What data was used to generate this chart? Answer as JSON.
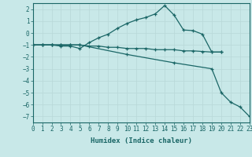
{
  "title": "",
  "xlabel": "Humidex (Indice chaleur)",
  "bg_color": "#c8e8e8",
  "grid_color_major": "#b0d0d0",
  "grid_color_minor": "#d0e8e8",
  "line_color": "#1a6666",
  "xlim": [
    0,
    23
  ],
  "ylim": [
    -7.5,
    2.5
  ],
  "xticks": [
    0,
    1,
    2,
    3,
    4,
    5,
    6,
    7,
    8,
    9,
    10,
    11,
    12,
    13,
    14,
    15,
    16,
    17,
    18,
    19,
    20,
    21,
    22,
    23
  ],
  "yticks": [
    -7,
    -6,
    -5,
    -4,
    -3,
    -2,
    -1,
    0,
    1,
    2
  ],
  "line1_x": [
    0,
    1,
    2,
    3,
    4,
    5,
    6,
    7,
    8,
    9,
    10,
    11,
    12,
    13,
    14,
    15,
    16,
    17,
    18,
    19,
    20
  ],
  "line1_y": [
    -1,
    -1,
    -1,
    -1.1,
    -1.1,
    -1.3,
    -0.8,
    -0.4,
    -0.1,
    0.4,
    0.8,
    1.1,
    1.3,
    1.6,
    2.3,
    1.5,
    0.25,
    0.2,
    -0.1,
    -1.6,
    -1.6
  ],
  "line2_x": [
    0,
    1,
    2,
    3,
    4,
    5,
    6,
    7,
    8,
    9,
    10,
    11,
    12,
    13,
    14,
    15,
    16,
    17,
    18,
    19,
    20
  ],
  "line2_y": [
    -1,
    -1,
    -1,
    -1,
    -1,
    -1,
    -1.1,
    -1.1,
    -1.2,
    -1.2,
    -1.3,
    -1.3,
    -1.3,
    -1.4,
    -1.4,
    -1.4,
    -1.5,
    -1.5,
    -1.55,
    -1.6,
    -1.6
  ],
  "line3_x": [
    0,
    1,
    2,
    3,
    4,
    5,
    10,
    15,
    19,
    20,
    21,
    22,
    23
  ],
  "line3_y": [
    -1,
    -1,
    -1,
    -1,
    -1,
    -1,
    -1.8,
    -2.5,
    -3.0,
    -5.0,
    -5.8,
    -6.2,
    -7.0
  ]
}
